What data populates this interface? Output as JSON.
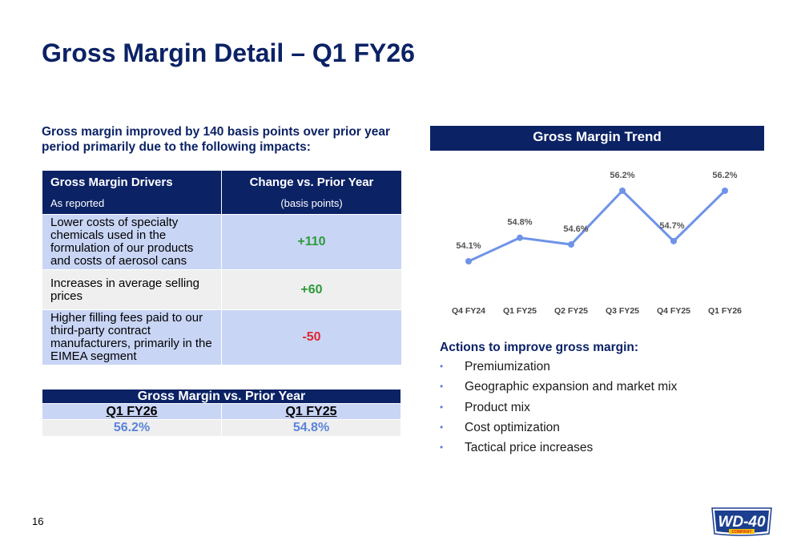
{
  "title": "Gross Margin Detail – Q1 FY26",
  "intro": "Gross margin improved by 140 basis points over prior year period primarily due to the following impacts:",
  "drivers_table": {
    "col1_title": "Gross Margin Drivers",
    "col1_sub": "As reported",
    "col2_title": "Change vs. Prior Year",
    "col2_sub": "(basis points)",
    "rows": [
      {
        "label": "Lower costs of specialty chemicals used in the formulation of our products and costs of aerosol cans",
        "value": "+110"
      },
      {
        "label": "Increases in average selling prices",
        "value": "+60"
      },
      {
        "label": "Higher filling fees paid to our third-party contract manufacturers, primarily in the EIMEA segment",
        "value": "-50"
      }
    ]
  },
  "gm_table": {
    "title": "Gross Margin vs. Prior Year",
    "col1": "Q1 FY26",
    "col2": "Q1 FY25",
    "val1": "56.2%",
    "val2": "54.8%"
  },
  "chart_data": {
    "type": "line",
    "title": "Gross Margin Trend",
    "categories": [
      "Q4 FY24",
      "Q1 FY25",
      "Q2 FY25",
      "Q3 FY25",
      "Q4 FY25",
      "Q1 FY26"
    ],
    "values": [
      54.1,
      54.8,
      54.6,
      56.2,
      54.7,
      56.2
    ],
    "data_labels": [
      "54.1%",
      "54.8%",
      "54.6%",
      "56.2%",
      "54.7%",
      "56.2%"
    ],
    "ylim": [
      53.5,
      56.5
    ],
    "grid": false,
    "color": "#6f93e8"
  },
  "actions": {
    "title": "Actions to improve gross margin:",
    "items": [
      "Premiumization",
      "Geographic expansion and market mix",
      "Product mix",
      "Cost optimization",
      "Tactical price increases"
    ]
  },
  "page_number": "16",
  "logo": {
    "text": "WD-40",
    "sub": "COMPANY"
  }
}
